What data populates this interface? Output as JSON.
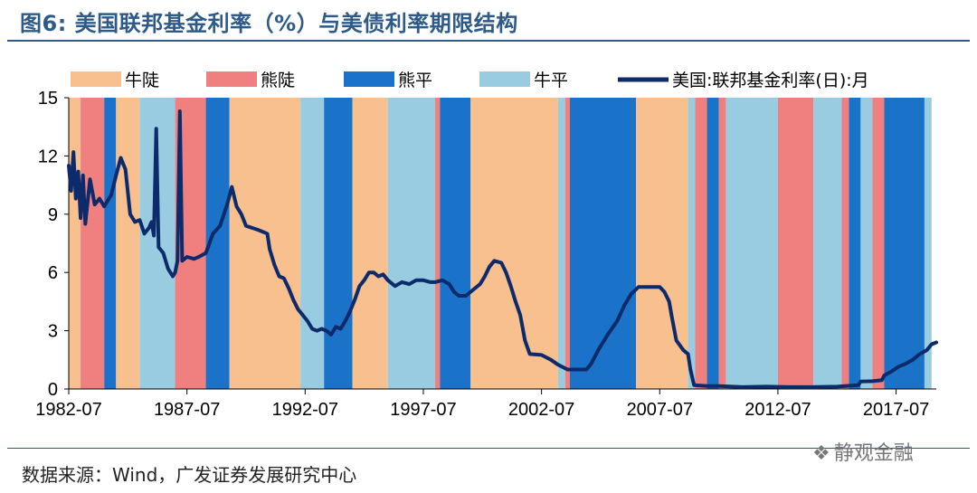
{
  "title": "图6:  美国联邦基金利率（%）与美债利率期限结构",
  "source": "数据来源：Wind，广发证券发展研究中心",
  "watermark": {
    "icon": "wechat-icon",
    "text": "静观金融"
  },
  "colors": {
    "bull_steep": "#f8bf8f",
    "bear_steep": "#f08080",
    "bear_flat": "#1a73c8",
    "bull_flat": "#99cce0",
    "line": "#0d2a6b",
    "title": "#2e5a8a"
  },
  "chart_data": {
    "type": "line",
    "title": "美国联邦基金利率（%）与美债利率期限结构",
    "xlabel": "",
    "ylabel": "",
    "xlim": [
      1982.5,
      2019.2
    ],
    "ylim": [
      0,
      15
    ],
    "yticks": [
      0,
      3,
      6,
      9,
      12,
      15
    ],
    "xticks": [
      {
        "x": 1982.5,
        "label": "1982-07"
      },
      {
        "x": 1987.5,
        "label": "1987-07"
      },
      {
        "x": 1992.5,
        "label": "1992-07"
      },
      {
        "x": 1997.5,
        "label": "1997-07"
      },
      {
        "x": 2002.5,
        "label": "2002-07"
      },
      {
        "x": 2007.5,
        "label": "2007-07"
      },
      {
        "x": 2012.5,
        "label": "2012-07"
      },
      {
        "x": 2017.5,
        "label": "2017-07"
      }
    ],
    "legend_position": "top",
    "legend": [
      {
        "key": "bull_steep",
        "label": "牛陡",
        "kind": "area"
      },
      {
        "key": "bear_steep",
        "label": "熊陡",
        "kind": "area"
      },
      {
        "key": "bear_flat",
        "label": "熊平",
        "kind": "area"
      },
      {
        "key": "bull_flat",
        "label": "牛平",
        "kind": "area"
      },
      {
        "key": "line",
        "label": "美国:联邦基金利率(日):月",
        "kind": "line"
      }
    ],
    "regimes": [
      {
        "start": 1982.5,
        "end": 1983.0,
        "type": "bull_steep"
      },
      {
        "start": 1983.0,
        "end": 1984.0,
        "type": "bear_steep"
      },
      {
        "start": 1984.0,
        "end": 1984.5,
        "type": "bear_flat"
      },
      {
        "start": 1984.5,
        "end": 1985.5,
        "type": "bull_steep"
      },
      {
        "start": 1985.5,
        "end": 1987.0,
        "type": "bull_flat"
      },
      {
        "start": 1987.0,
        "end": 1988.3,
        "type": "bear_steep"
      },
      {
        "start": 1988.3,
        "end": 1989.3,
        "type": "bear_flat"
      },
      {
        "start": 1989.3,
        "end": 1992.3,
        "type": "bull_steep"
      },
      {
        "start": 1992.3,
        "end": 1993.3,
        "type": "bull_flat"
      },
      {
        "start": 1993.3,
        "end": 1994.5,
        "type": "bear_flat"
      },
      {
        "start": 1994.5,
        "end": 1996.0,
        "type": "bull_steep"
      },
      {
        "start": 1996.0,
        "end": 1998.0,
        "type": "bull_flat"
      },
      {
        "start": 1998.0,
        "end": 1998.2,
        "type": "bear_steep"
      },
      {
        "start": 1998.2,
        "end": 1999.5,
        "type": "bear_flat"
      },
      {
        "start": 1999.5,
        "end": 2003.2,
        "type": "bull_steep"
      },
      {
        "start": 2003.2,
        "end": 2003.5,
        "type": "bull_flat"
      },
      {
        "start": 2003.5,
        "end": 2003.7,
        "type": "bear_steep"
      },
      {
        "start": 2003.7,
        "end": 2006.5,
        "type": "bear_flat"
      },
      {
        "start": 2006.5,
        "end": 2008.7,
        "type": "bull_steep"
      },
      {
        "start": 2008.7,
        "end": 2009.0,
        "type": "bull_flat"
      },
      {
        "start": 2009.0,
        "end": 2009.5,
        "type": "bear_steep"
      },
      {
        "start": 2009.5,
        "end": 2010.0,
        "type": "bear_flat"
      },
      {
        "start": 2010.0,
        "end": 2010.3,
        "type": "bear_steep"
      },
      {
        "start": 2010.3,
        "end": 2012.5,
        "type": "bull_flat"
      },
      {
        "start": 2012.5,
        "end": 2014.0,
        "type": "bear_steep"
      },
      {
        "start": 2014.0,
        "end": 2015.2,
        "type": "bull_flat"
      },
      {
        "start": 2015.2,
        "end": 2015.5,
        "type": "bear_steep"
      },
      {
        "start": 2015.5,
        "end": 2016.0,
        "type": "bear_flat"
      },
      {
        "start": 2016.0,
        "end": 2016.5,
        "type": "bull_flat"
      },
      {
        "start": 2016.5,
        "end": 2017.0,
        "type": "bear_steep"
      },
      {
        "start": 2017.0,
        "end": 2018.7,
        "type": "bear_flat"
      },
      {
        "start": 2018.7,
        "end": 2019.0,
        "type": "bull_flat"
      }
    ],
    "series": [
      {
        "name": "美国:联邦基金利率(日):月",
        "points": [
          [
            1982.5,
            11.5
          ],
          [
            1982.6,
            10.2
          ],
          [
            1982.7,
            12.2
          ],
          [
            1982.8,
            9.8
          ],
          [
            1982.9,
            11.2
          ],
          [
            1983.0,
            8.8
          ],
          [
            1983.1,
            11.0
          ],
          [
            1983.2,
            8.5
          ],
          [
            1983.4,
            10.8
          ],
          [
            1983.6,
            9.5
          ],
          [
            1983.8,
            9.8
          ],
          [
            1984.0,
            9.4
          ],
          [
            1984.3,
            10.0
          ],
          [
            1984.5,
            11.0
          ],
          [
            1984.7,
            11.9
          ],
          [
            1984.9,
            11.3
          ],
          [
            1985.1,
            9.0
          ],
          [
            1985.3,
            8.6
          ],
          [
            1985.5,
            8.7
          ],
          [
            1985.7,
            8.0
          ],
          [
            1985.9,
            8.3
          ],
          [
            1986.0,
            8.6
          ],
          [
            1986.1,
            7.9
          ],
          [
            1986.2,
            13.4
          ],
          [
            1986.3,
            7.3
          ],
          [
            1986.5,
            7.0
          ],
          [
            1986.7,
            6.2
          ],
          [
            1986.9,
            5.8
          ],
          [
            1987.0,
            6.0
          ],
          [
            1987.1,
            6.6
          ],
          [
            1987.2,
            14.3
          ],
          [
            1987.3,
            6.6
          ],
          [
            1987.5,
            6.8
          ],
          [
            1987.8,
            6.7
          ],
          [
            1988.0,
            6.8
          ],
          [
            1988.3,
            7.0
          ],
          [
            1988.6,
            8.0
          ],
          [
            1988.9,
            8.4
          ],
          [
            1989.2,
            9.5
          ],
          [
            1989.4,
            10.4
          ],
          [
            1989.6,
            9.4
          ],
          [
            1989.8,
            9.0
          ],
          [
            1990.0,
            8.4
          ],
          [
            1990.5,
            8.2
          ],
          [
            1990.9,
            8.0
          ],
          [
            1991.0,
            7.2
          ],
          [
            1991.2,
            6.4
          ],
          [
            1991.4,
            5.8
          ],
          [
            1991.6,
            5.7
          ],
          [
            1991.8,
            5.2
          ],
          [
            1992.0,
            4.6
          ],
          [
            1992.2,
            4.1
          ],
          [
            1992.4,
            3.8
          ],
          [
            1992.6,
            3.5
          ],
          [
            1992.8,
            3.1
          ],
          [
            1993.0,
            3.0
          ],
          [
            1993.2,
            3.1
          ],
          [
            1993.4,
            3.0
          ],
          [
            1993.6,
            2.8
          ],
          [
            1993.8,
            3.2
          ],
          [
            1994.0,
            3.1
          ],
          [
            1994.2,
            3.5
          ],
          [
            1994.4,
            4.0
          ],
          [
            1994.6,
            4.6
          ],
          [
            1994.8,
            5.3
          ],
          [
            1995.0,
            5.6
          ],
          [
            1995.2,
            6.0
          ],
          [
            1995.4,
            6.0
          ],
          [
            1995.6,
            5.8
          ],
          [
            1995.8,
            5.9
          ],
          [
            1996.0,
            5.6
          ],
          [
            1996.3,
            5.3
          ],
          [
            1996.6,
            5.5
          ],
          [
            1996.9,
            5.4
          ],
          [
            1997.2,
            5.6
          ],
          [
            1997.5,
            5.6
          ],
          [
            1997.8,
            5.5
          ],
          [
            1998.0,
            5.5
          ],
          [
            1998.3,
            5.6
          ],
          [
            1998.6,
            5.4
          ],
          [
            1998.8,
            5.0
          ],
          [
            1999.0,
            4.8
          ],
          [
            1999.3,
            4.8
          ],
          [
            1999.6,
            5.1
          ],
          [
            1999.9,
            5.4
          ],
          [
            2000.1,
            5.8
          ],
          [
            2000.3,
            6.3
          ],
          [
            2000.5,
            6.6
          ],
          [
            2000.8,
            6.5
          ],
          [
            2001.0,
            6.0
          ],
          [
            2001.2,
            5.3
          ],
          [
            2001.4,
            4.5
          ],
          [
            2001.6,
            3.8
          ],
          [
            2001.8,
            2.5
          ],
          [
            2002.0,
            1.8
          ],
          [
            2002.5,
            1.75
          ],
          [
            2002.9,
            1.5
          ],
          [
            2003.2,
            1.25
          ],
          [
            2003.6,
            1.0
          ],
          [
            2004.0,
            1.0
          ],
          [
            2004.4,
            1.0
          ],
          [
            2004.6,
            1.3
          ],
          [
            2004.9,
            2.0
          ],
          [
            2005.3,
            2.8
          ],
          [
            2005.7,
            3.5
          ],
          [
            2006.0,
            4.3
          ],
          [
            2006.3,
            4.9
          ],
          [
            2006.6,
            5.25
          ],
          [
            2007.0,
            5.25
          ],
          [
            2007.5,
            5.25
          ],
          [
            2007.7,
            5.0
          ],
          [
            2007.9,
            4.5
          ],
          [
            2008.0,
            3.8
          ],
          [
            2008.2,
            2.5
          ],
          [
            2008.5,
            2.0
          ],
          [
            2008.7,
            1.8
          ],
          [
            2008.8,
            1.0
          ],
          [
            2008.95,
            0.2
          ],
          [
            2009.5,
            0.15
          ],
          [
            2010.0,
            0.15
          ],
          [
            2011.0,
            0.1
          ],
          [
            2012.0,
            0.12
          ],
          [
            2013.0,
            0.1
          ],
          [
            2014.0,
            0.1
          ],
          [
            2015.0,
            0.12
          ],
          [
            2015.9,
            0.2
          ],
          [
            2016.0,
            0.38
          ],
          [
            2016.5,
            0.4
          ],
          [
            2016.9,
            0.45
          ],
          [
            2017.0,
            0.7
          ],
          [
            2017.3,
            0.9
          ],
          [
            2017.6,
            1.15
          ],
          [
            2017.9,
            1.3
          ],
          [
            2018.2,
            1.5
          ],
          [
            2018.5,
            1.8
          ],
          [
            2018.8,
            2.0
          ],
          [
            2019.0,
            2.3
          ],
          [
            2019.2,
            2.4
          ]
        ]
      }
    ]
  }
}
